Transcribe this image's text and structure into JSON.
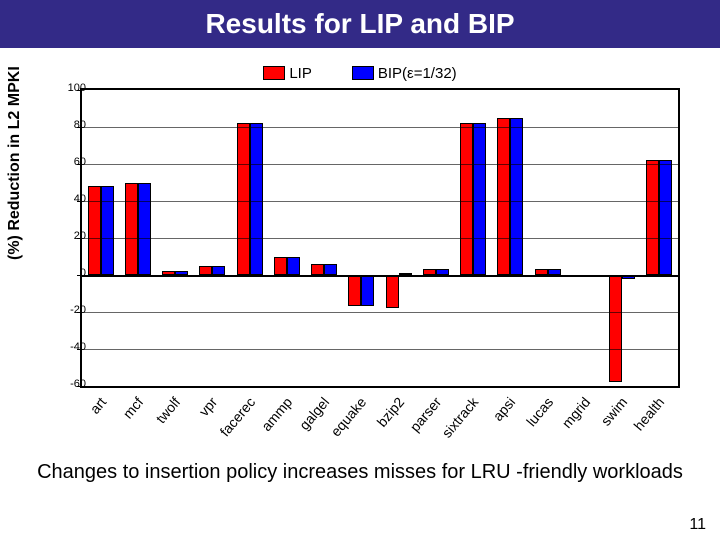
{
  "title": "Results for LIP and BIP",
  "title_bg": "#332a87",
  "title_fg": "#ffffff",
  "legend": {
    "items": [
      {
        "label": "LIP",
        "color": "#ff0000"
      },
      {
        "label": "BIP(ε=1/32)",
        "color": "#0000ff"
      }
    ]
  },
  "chart": {
    "type": "grouped-bar",
    "ylabel": "(%) Reduction in L2 MPKI",
    "ylim": [
      -60,
      100
    ],
    "yticks": [
      -60,
      -40,
      -20,
      0,
      20,
      40,
      60,
      80,
      100
    ],
    "grid_color": "#000000",
    "background": "#ffffff",
    "colors": {
      "LIP": "#ff0000",
      "BIP": "#0000ff"
    },
    "categories": [
      "art",
      "mcf",
      "twolf",
      "vpr",
      "facerec",
      "ammp",
      "galgel",
      "equake",
      "bzip2",
      "parser",
      "sixtrack",
      "apsi",
      "lucas",
      "mgrid",
      "swim",
      "health"
    ],
    "series": {
      "LIP": [
        48,
        50,
        2,
        5,
        82,
        10,
        6,
        -17,
        -18,
        3,
        82,
        85,
        3,
        0,
        -58,
        62
      ],
      "BIP": [
        48,
        50,
        2,
        5,
        82,
        10,
        6,
        -17,
        1,
        3,
        82,
        85,
        3,
        0,
        -2,
        62
      ]
    },
    "label_fontsize": 14,
    "ylabel_fontsize": 16
  },
  "caption": "Changes to insertion policy increases misses for LRU -friendly workloads",
  "page_number": "11"
}
